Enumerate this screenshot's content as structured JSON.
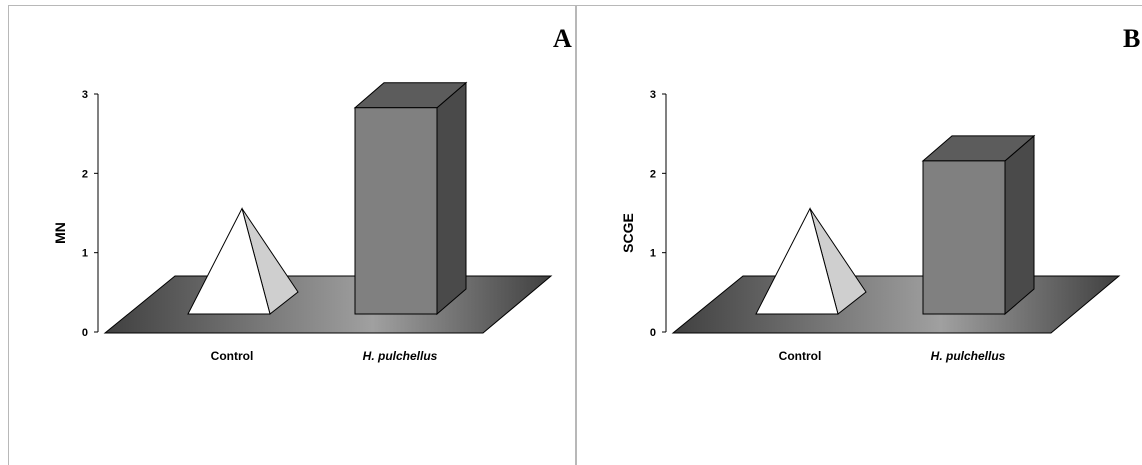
{
  "chart_data": [
    {
      "type": "bar",
      "panel_label": "A",
      "ylabel": "MN",
      "categories": [
        "Control",
        "H. pulchellus"
      ],
      "category_styles": [
        "normal",
        "italic"
      ],
      "values": [
        1.33,
        2.6
      ],
      "shapes": [
        "pyramid",
        "column"
      ],
      "yticks": [
        "0",
        "1",
        "2",
        "3"
      ],
      "ylim": [
        0,
        3
      ],
      "grid": false,
      "style": "3d"
    },
    {
      "type": "bar",
      "panel_label": "B",
      "ylabel": "SCGE",
      "categories": [
        "Control",
        "H. pulchellus"
      ],
      "category_styles": [
        "normal",
        "italic"
      ],
      "values": [
        1.33,
        1.93
      ],
      "shapes": [
        "pyramid",
        "column"
      ],
      "yticks": [
        "0",
        "1",
        "2",
        "3"
      ],
      "ylim": [
        0,
        3
      ],
      "grid": false,
      "style": "3d"
    }
  ],
  "colors": {
    "floor_dark": "#404040",
    "floor_light": "#a0a0a0",
    "pyramid_front": "#ffffff",
    "pyramid_side": "#cfcfcf",
    "column_front": "#808080",
    "column_top": "#5c5c5c",
    "column_side": "#4a4a4a",
    "outline": "#000000"
  }
}
